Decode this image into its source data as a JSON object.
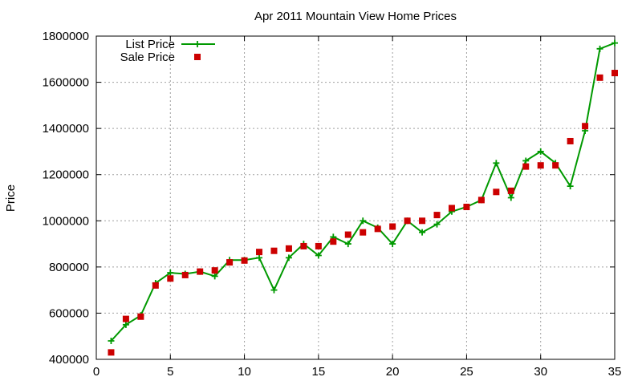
{
  "chart_data": {
    "type": "line",
    "title": "Apr 2011 Mountain View Home Prices",
    "xlabel": "",
    "ylabel": "Price",
    "xlim": [
      0,
      35
    ],
    "ylim": [
      400000,
      1800000
    ],
    "xticks": [
      0,
      5,
      10,
      15,
      20,
      25,
      30,
      35
    ],
    "yticks": [
      400000,
      600000,
      800000,
      1000000,
      1200000,
      1400000,
      1600000,
      1800000
    ],
    "grid": true,
    "legend_position": "top-left",
    "x": [
      1,
      2,
      3,
      4,
      5,
      6,
      7,
      8,
      9,
      10,
      11,
      12,
      13,
      14,
      15,
      16,
      17,
      18,
      19,
      20,
      21,
      22,
      23,
      24,
      25,
      26,
      27,
      28,
      29,
      30,
      31,
      32,
      33,
      34,
      35
    ],
    "series": [
      {
        "name": "List Price",
        "style": "line-cross",
        "color": "#009900",
        "values": [
          480000,
          550000,
          590000,
          730000,
          775000,
          770000,
          780000,
          760000,
          830000,
          830000,
          840000,
          700000,
          840000,
          900000,
          850000,
          930000,
          900000,
          1000000,
          970000,
          900000,
          1000000,
          950000,
          985000,
          1040000,
          1060000,
          1090000,
          1250000,
          1100000,
          1260000,
          1300000,
          1250000,
          1150000,
          1390000,
          1745000,
          1770000
        ]
      },
      {
        "name": "Sale Price",
        "style": "square",
        "color": "#cc0000",
        "values": [
          430000,
          575000,
          585000,
          720000,
          750000,
          765000,
          780000,
          785000,
          820000,
          828000,
          865000,
          870000,
          880000,
          890000,
          890000,
          910000,
          940000,
          950000,
          965000,
          975000,
          1000000,
          1000000,
          1025000,
          1055000,
          1060000,
          1090000,
          1125000,
          1130000,
          1235000,
          1240000,
          1240000,
          1345000,
          1410000,
          1620000,
          1640000
        ]
      }
    ]
  }
}
